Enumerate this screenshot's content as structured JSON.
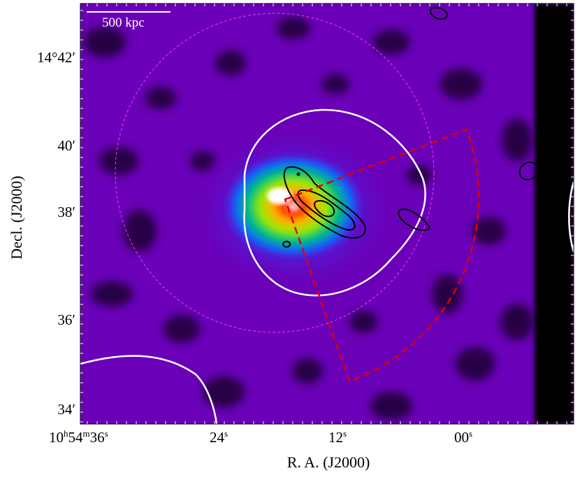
{
  "figure": {
    "xlabel": "R. A. (J2000)",
    "ylabel": "Decl. (J2000)",
    "scalebar": "500 kpc",
    "x_ticks": [
      {
        "h": "10",
        "m": "54",
        "s": "36"
      },
      {
        "s": "24"
      },
      {
        "s": "12"
      },
      {
        "s": "00"
      }
    ],
    "y_ticks": [
      {
        "deg": "14",
        "min": "42"
      },
      {
        "min": "40"
      },
      {
        "min": "38"
      },
      {
        "min": "36"
      },
      {
        "min": "34"
      }
    ]
  },
  "colors": {
    "background": "#6a00b8",
    "contour_white": "#ffffff",
    "contour_black": "#000000",
    "sector": "#e00000",
    "r500_circle": "#ff33ff"
  }
}
